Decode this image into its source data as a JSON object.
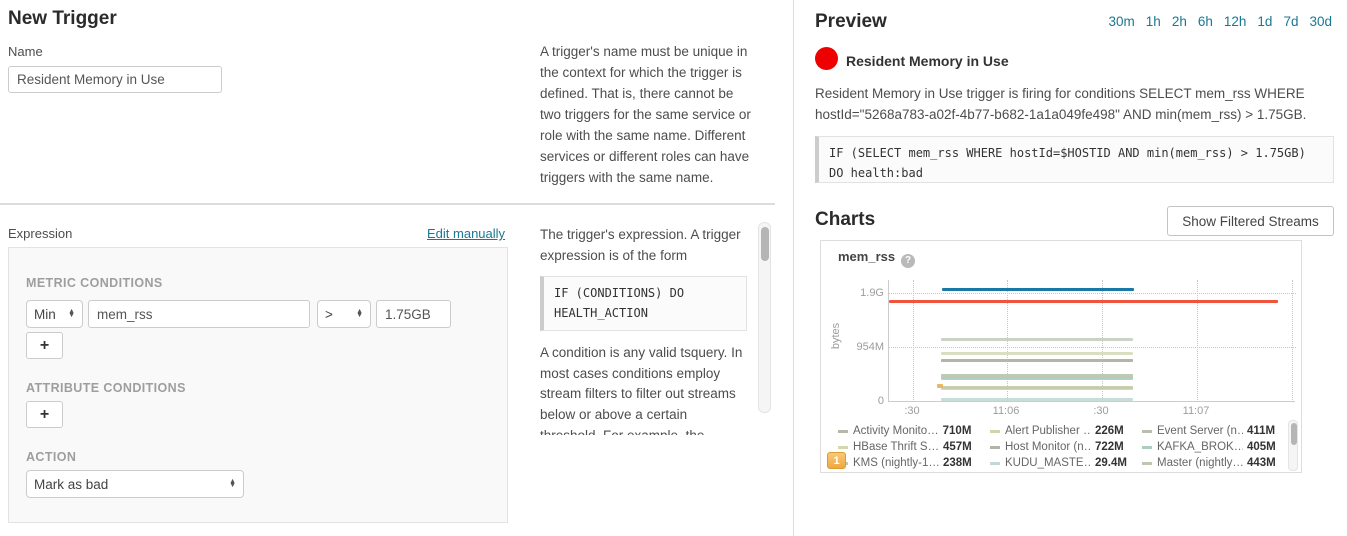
{
  "left_panel": {
    "title": "New Trigger",
    "name_label": "Name",
    "name_value": "Resident Memory in Use",
    "name_help": "A trigger's name must be unique in the context for which the trigger is defined. That is, there cannot be two triggers for the same service or role with the same name. Different services or different roles can have triggers with the same name.",
    "expression_label": "Expression",
    "edit_manually_label": "Edit manually",
    "metric_conditions_label": "METRIC CONDITIONS",
    "metric_function_value": "Min",
    "metric_name_value": "mem_rss",
    "metric_operator_value": ">",
    "metric_threshold_value": "1.75GB",
    "add_button_label": "+",
    "attribute_conditions_label": "ATTRIBUTE CONDITIONS",
    "action_label": "ACTION",
    "action_value": "Mark as bad",
    "expression_help_intro": "The trigger's expression. A trigger expression is of the form",
    "expression_help_code": "IF (CONDITIONS) DO HEALTH_ACTION",
    "expression_help_body": "A condition is any valid tsquery. In most cases conditions employ stream filters to filter out streams below or above a certain threshold. For example, the"
  },
  "preview": {
    "title": "Preview",
    "time_ranges": [
      "30m",
      "1h",
      "2h",
      "6h",
      "12h",
      "1d",
      "7d",
      "30d"
    ],
    "trigger_name": "Resident Memory in Use",
    "status_color": "#ee0000",
    "description": "Resident Memory in Use trigger is firing for conditions SELECT mem_rss WHERE hostId=\"5268a783-a02f-4b77-b682-1a1a049fe498\" AND min(mem_rss) > 1.75GB.",
    "code_line1": "IF (SELECT mem_rss WHERE hostId=$HOSTID AND min(mem_rss) > 1.75GB)",
    "code_line2": "DO health:bad",
    "charts_title": "Charts",
    "show_filtered_streams_label": "Show Filtered Streams",
    "stream_badge": "1"
  },
  "chart_data": {
    "type": "line",
    "title": "mem_rss",
    "ylabel": "bytes",
    "yticks": [
      "0",
      "954M",
      "1.9G"
    ],
    "xticks": [
      ":30",
      "11:06",
      ":30",
      "11:07"
    ],
    "ylim_m": [
      0,
      2150
    ],
    "grid": true,
    "legend_position": "bottom",
    "threshold_line": {
      "label": "1.75GB",
      "value_m": 1750,
      "color": "#f0543c"
    },
    "firing_stream": {
      "value_m": 1975,
      "color": "#1878a8"
    },
    "series": [
      {
        "name": "Activity Monito…",
        "value_label": "710M",
        "value_m": 710,
        "color": "#b2b8ab"
      },
      {
        "name": "Alert Publisher …",
        "value_label": "226M",
        "value_m": 226,
        "color": "#ccd7ab"
      },
      {
        "name": "Event Server (n…",
        "value_label": "411M",
        "value_m": 411,
        "color": "#b7bfb0"
      },
      {
        "name": "HBase Thrift S…",
        "value_label": "457M",
        "value_m": 457,
        "color": "#d2d9af"
      },
      {
        "name": "Host Monitor (n…",
        "value_label": "722M",
        "value_m": 722,
        "color": "#b0b5aa"
      },
      {
        "name": "KAFKA_BROK…",
        "value_label": "405M",
        "value_m": 405,
        "color": "#a9cfc3"
      },
      {
        "name": "KMS (nightly-1…",
        "value_label": "238M",
        "value_m": 238,
        "color": "#c3caa9"
      },
      {
        "name": "KUDU_MASTE…",
        "value_label": "29.4M",
        "value_m": 29.4,
        "color": "#c2d8d5"
      },
      {
        "name": "Master (nightly…",
        "value_label": "443M",
        "value_m": 443,
        "color": "#bec7b2"
      }
    ],
    "unlabeled_streams": [
      {
        "value_m": 1078,
        "color": "#c6cdbf"
      },
      {
        "value_m": 848,
        "color": "#d6dcba"
      }
    ]
  }
}
